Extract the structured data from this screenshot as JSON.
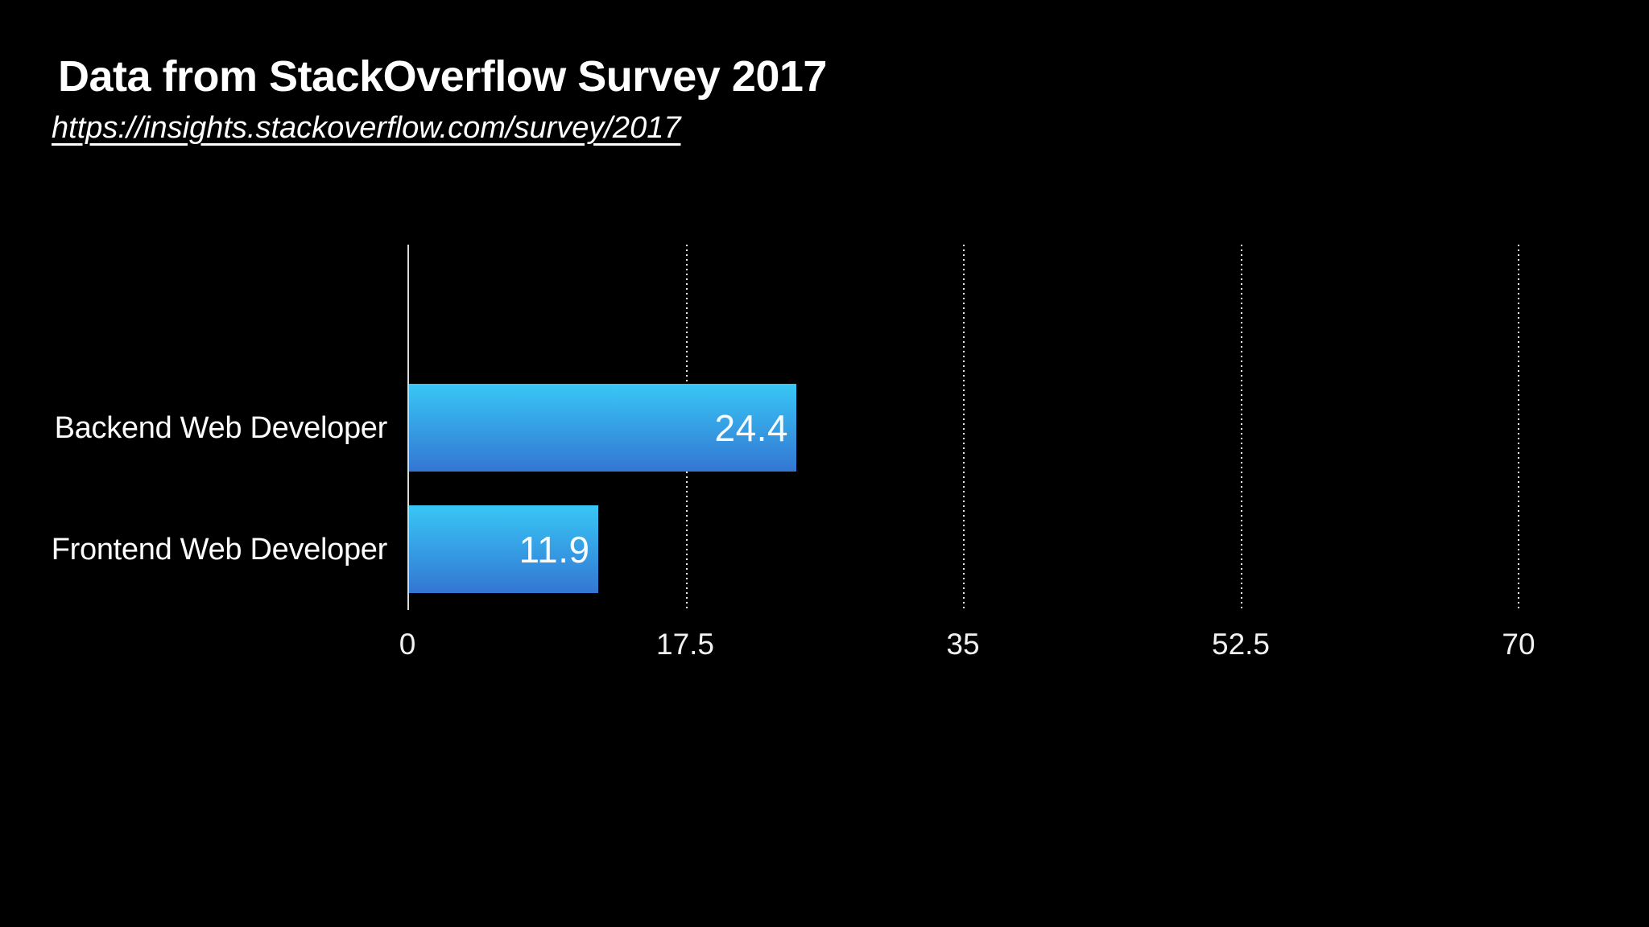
{
  "header": {
    "title": "Data from StackOverflow Survey 2017",
    "link": "https://insights.stackoverflow.com/survey/2017"
  },
  "chart_data": {
    "type": "bar",
    "orientation": "horizontal",
    "title": "Data from StackOverflow Survey 2017",
    "source": "https://insights.stackoverflow.com/survey/2017",
    "categories": [
      "Backend Web Developer",
      "Frontend Web Developer"
    ],
    "values": [
      24.4,
      11.9
    ],
    "value_labels": [
      "24.4",
      "11.9"
    ],
    "xlim": [
      0,
      70
    ],
    "x_ticks": [
      0,
      17.5,
      35,
      52.5,
      70
    ],
    "x_tick_labels": [
      "0",
      "17.5",
      "35",
      "52.5",
      "70"
    ],
    "grid": "vertical-dotted-gridlines",
    "legend": "none",
    "colors": {
      "background": "#000000",
      "bar_gradient_top": "#38c7f5",
      "bar_gradient_bottom": "#3376d3",
      "axis_line": "#d9d9d9",
      "text": "#ffffff"
    }
  }
}
